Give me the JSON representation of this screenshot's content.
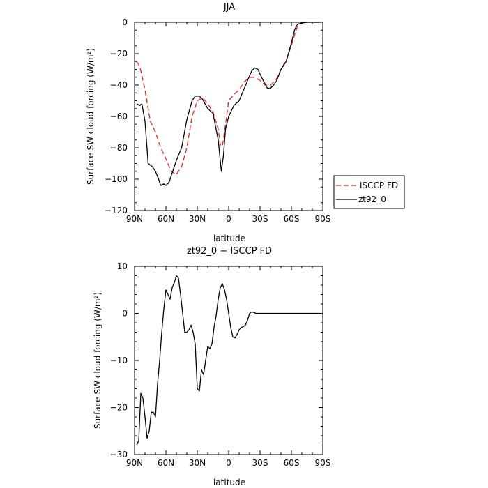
{
  "chart_data": [
    {
      "type": "line",
      "title": "JJA",
      "xlabel": "latitude",
      "ylabel": "Surface SW cloud forcing (W/m²)",
      "xlim": [
        90,
        -90
      ],
      "ylim": [
        -120,
        0
      ],
      "x_ticks": [
        90,
        60,
        30,
        0,
        -30,
        -60,
        -90
      ],
      "x_tick_labels": [
        "90N",
        "60N",
        "30N",
        "0",
        "30S",
        "60S",
        "90S"
      ],
      "y_ticks": [
        0,
        -20,
        -40,
        -60,
        -80,
        -100,
        -120
      ],
      "y_tick_labels": [
        "0",
        "−20",
        "−40",
        "−60",
        "−80",
        "−100",
        "−120"
      ],
      "legend_position": "right",
      "series": [
        {
          "name": "ISCCP FD",
          "color": "#e8201c",
          "dash": "dashed",
          "x": [
            88,
            85,
            80,
            75,
            70,
            65,
            60,
            55,
            50,
            45,
            40,
            35,
            30,
            25,
            20,
            15,
            10,
            8,
            6,
            4,
            0,
            -5,
            -10,
            -15,
            -20,
            -25,
            -30,
            -35,
            -40,
            -45,
            -50,
            -55,
            -60,
            -63,
            -66,
            -70,
            -75,
            -80,
            -85,
            -88
          ],
          "values": [
            -25,
            -28,
            -43,
            -63,
            -70,
            -80,
            -87,
            -95,
            -97,
            -92,
            -80,
            -60,
            -50,
            -48,
            -52,
            -57,
            -68,
            -78,
            -79,
            -70,
            -50,
            -46,
            -43,
            -38,
            -35,
            -35,
            -37,
            -40,
            -40,
            -37,
            -30,
            -24,
            -15,
            -8,
            -2,
            0,
            0,
            0,
            0,
            0
          ]
        },
        {
          "name": "zt92_0",
          "color": "#000000",
          "dash": "solid",
          "x": [
            88,
            85,
            83,
            80,
            77,
            73,
            70,
            67,
            65,
            62,
            60,
            57,
            55,
            50,
            45,
            40,
            35,
            32,
            28,
            25,
            20,
            15,
            10,
            7,
            5,
            3,
            0,
            -5,
            -10,
            -15,
            -20,
            -22,
            -25,
            -28,
            -30,
            -33,
            -37,
            -40,
            -43,
            -46,
            -50,
            -55,
            -60,
            -63,
            -65,
            -67,
            -70,
            -75,
            -80,
            -88
          ],
          "values": [
            -52,
            -53,
            -52,
            -63,
            -90,
            -92,
            -95,
            -100,
            -104,
            -103,
            -104,
            -102,
            -98,
            -88,
            -80,
            -62,
            -50,
            -47,
            -47,
            -49,
            -55,
            -58,
            -75,
            -95,
            -85,
            -68,
            -60,
            -53,
            -50,
            -42,
            -34,
            -31,
            -29,
            -30,
            -33,
            -37,
            -42,
            -42,
            -40,
            -37,
            -30,
            -25,
            -13,
            -5,
            -2,
            -1,
            -0.5,
            0,
            0,
            0
          ]
        }
      ]
    },
    {
      "type": "line",
      "title": "zt92_0 − ISCCP FD",
      "xlabel": "latitude",
      "ylabel": "Surface SW cloud forcing (W/m²)",
      "xlim": [
        90,
        -90
      ],
      "ylim": [
        -30,
        10
      ],
      "x_ticks": [
        90,
        60,
        30,
        0,
        -30,
        -60,
        -90
      ],
      "x_tick_labels": [
        "90N",
        "60N",
        "30N",
        "0",
        "30S",
        "60S",
        "90S"
      ],
      "y_ticks": [
        10,
        0,
        -10,
        -20,
        -30
      ],
      "y_tick_labels": [
        "10",
        "0",
        "−10",
        "−20",
        "−30"
      ],
      "series": [
        {
          "name": "",
          "color": "#000000",
          "dash": "solid",
          "x": [
            88,
            86,
            84,
            82,
            80,
            78,
            76,
            74,
            72,
            70,
            68,
            66,
            64,
            62,
            60,
            58,
            56,
            54,
            52,
            50,
            48,
            46,
            44,
            42,
            40,
            38,
            36,
            34,
            32,
            30,
            28,
            26,
            24,
            22,
            20,
            18,
            16,
            14,
            12,
            10,
            8,
            6,
            4,
            2,
            0,
            -2,
            -4,
            -6,
            -8,
            -10,
            -12,
            -14,
            -16,
            -18,
            -20,
            -22,
            -24,
            -26,
            -28,
            -30,
            -32,
            -34,
            -36,
            -38,
            -40,
            -42,
            -44,
            -46,
            -48,
            -50,
            -52,
            -54,
            -56,
            -58,
            -60,
            -62,
            -64,
            -66,
            -68,
            -70,
            -75,
            -80,
            -85,
            -88
          ],
          "values": [
            -28,
            -27,
            -17,
            -18,
            -22,
            -26.5,
            -25,
            -21,
            -21,
            -22,
            -15,
            -10,
            -4,
            1,
            5,
            4,
            3,
            5.5,
            6.5,
            8,
            7.5,
            4,
            0,
            -4,
            -4,
            -3.5,
            -2.5,
            -4,
            -6.5,
            -16,
            -16.5,
            -12,
            -13,
            -10,
            -7,
            -7.5,
            -6.5,
            -3,
            -0.5,
            3,
            5.5,
            6.3,
            5,
            3,
            0,
            -3,
            -5,
            -5.2,
            -4.5,
            -3.5,
            -3,
            -2.8,
            -2.5,
            -1.5,
            0,
            0.3,
            0.2,
            0,
            0,
            0,
            0,
            0,
            0,
            0,
            0,
            0,
            0,
            0,
            0,
            0,
            0,
            0,
            0,
            0,
            0,
            0,
            0,
            0,
            0,
            0,
            0,
            0,
            0,
            0
          ]
        }
      ]
    }
  ]
}
